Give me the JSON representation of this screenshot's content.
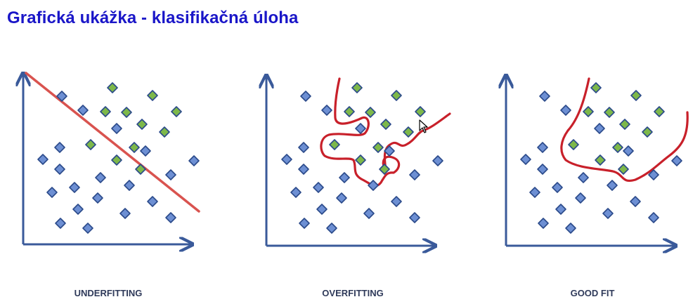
{
  "title": "Grafická ukážka - klasifikačná úloha",
  "colors": {
    "axis": "#3a5a9a",
    "boundary_underfit": "#d9534f",
    "boundary_fit": "#c8202a",
    "class_blue": "#6d8fd3",
    "class_green": "#7db84a",
    "marker_stroke": "#2b4a8a"
  },
  "panels": [
    {
      "id": "underfitting",
      "label": "UNDERFITTING",
      "boundary_type": "straight-line",
      "blue_points": [
        [
          88,
          137
        ],
        [
          118,
          157
        ],
        [
          166,
          183
        ],
        [
          85,
          210
        ],
        [
          61,
          227
        ],
        [
          85,
          241
        ],
        [
          207,
          215
        ],
        [
          243,
          249
        ],
        [
          276,
          229
        ],
        [
          143,
          253
        ],
        [
          184,
          264
        ],
        [
          106,
          267
        ],
        [
          74,
          274
        ],
        [
          139,
          282
        ],
        [
          217,
          287
        ],
        [
          111,
          298
        ],
        [
          178,
          304
        ],
        [
          243,
          310
        ],
        [
          86,
          318
        ],
        [
          125,
          325
        ]
      ],
      "green_points": [
        [
          160,
          125
        ],
        [
          217,
          136
        ],
        [
          150,
          159
        ],
        [
          180,
          160
        ],
        [
          251,
          159
        ],
        [
          202,
          177
        ],
        [
          234,
          188
        ],
        [
          129,
          206
        ],
        [
          191,
          210
        ],
        [
          166,
          228
        ],
        [
          200,
          241
        ]
      ]
    },
    {
      "id": "overfitting",
      "label": "OVERFITTING",
      "boundary_type": "wiggly-curve",
      "blue_points": [
        [
          435,
          137
        ],
        [
          465,
          157
        ],
        [
          513,
          183
        ],
        [
          432,
          210
        ],
        [
          408,
          227
        ],
        [
          432,
          241
        ],
        [
          554,
          215
        ],
        [
          590,
          249
        ],
        [
          623,
          229
        ],
        [
          490,
          253
        ],
        [
          531,
          264
        ],
        [
          453,
          267
        ],
        [
          421,
          274
        ],
        [
          486,
          282
        ],
        [
          564,
          287
        ],
        [
          458,
          298
        ],
        [
          525,
          304
        ],
        [
          590,
          310
        ],
        [
          433,
          318
        ],
        [
          472,
          325
        ]
      ],
      "green_points": [
        [
          508,
          125
        ],
        [
          564,
          136
        ],
        [
          497,
          159
        ],
        [
          527,
          160
        ],
        [
          598,
          159
        ],
        [
          549,
          177
        ],
        [
          581,
          188
        ],
        [
          476,
          206
        ],
        [
          538,
          210
        ],
        [
          513,
          228
        ],
        [
          547,
          241
        ]
      ]
    },
    {
      "id": "goodfit",
      "label": "GOOD FIT",
      "boundary_type": "smooth-curve",
      "blue_points": [
        [
          775,
          137
        ],
        [
          805,
          157
        ],
        [
          853,
          183
        ],
        [
          772,
          210
        ],
        [
          748,
          227
        ],
        [
          772,
          241
        ],
        [
          894,
          215
        ],
        [
          930,
          249
        ],
        [
          963,
          229
        ],
        [
          830,
          253
        ],
        [
          871,
          264
        ],
        [
          793,
          267
        ],
        [
          761,
          274
        ],
        [
          826,
          282
        ],
        [
          904,
          287
        ],
        [
          798,
          298
        ],
        [
          865,
          304
        ],
        [
          930,
          310
        ],
        [
          773,
          318
        ],
        [
          812,
          325
        ]
      ],
      "green_points": [
        [
          848,
          125
        ],
        [
          905,
          136
        ],
        [
          837,
          159
        ],
        [
          867,
          160
        ],
        [
          938,
          159
        ],
        [
          889,
          177
        ],
        [
          921,
          188
        ],
        [
          816,
          206
        ],
        [
          879,
          210
        ],
        [
          854,
          228
        ],
        [
          887,
          241
        ]
      ]
    }
  ]
}
